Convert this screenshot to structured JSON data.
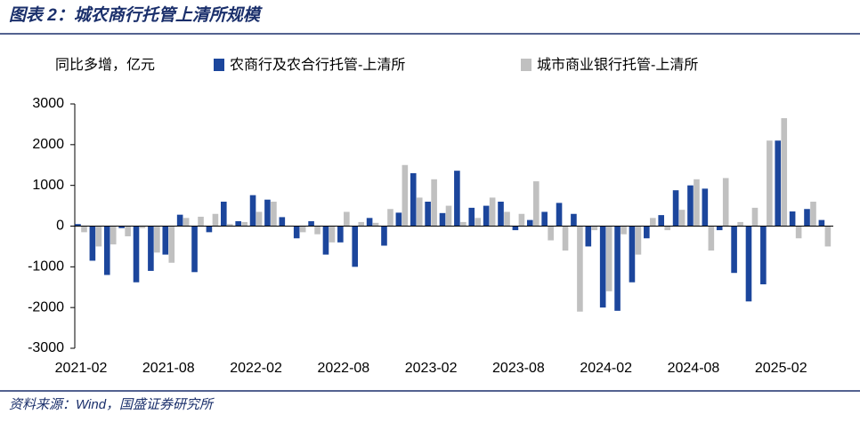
{
  "chart_data": {
    "type": "bar",
    "title": "图表 2：城农商行托管上清所规模",
    "y_label": "同比多增，亿元",
    "source": "资料来源：Wind，国盛证券研究所",
    "categories": [
      "2021-02",
      null,
      null,
      null,
      null,
      null,
      "2021-08",
      null,
      null,
      null,
      null,
      null,
      "2022-02",
      null,
      null,
      null,
      null,
      null,
      "2022-08",
      null,
      null,
      null,
      null,
      null,
      "2023-02",
      null,
      null,
      null,
      null,
      null,
      "2023-08",
      null,
      null,
      null,
      null,
      null,
      "2024-02",
      null,
      null,
      null,
      null,
      null,
      "2024-08",
      null,
      null,
      null,
      null,
      null,
      "2025-02",
      null,
      null,
      null
    ],
    "series": [
      {
        "name": "农商行及农合行托管-上清所",
        "color": "#1c469c",
        "values": [
          50,
          -850,
          -1200,
          -50,
          -1380,
          -1100,
          -700,
          280,
          -1130,
          -150,
          600,
          120,
          760,
          650,
          220,
          -300,
          120,
          -700,
          -400,
          -1000,
          200,
          -480,
          330,
          1300,
          600,
          320,
          1360,
          450,
          500,
          600,
          -100,
          150,
          350,
          570,
          300,
          -500,
          -2000,
          -2080,
          -1380,
          -300,
          270,
          880,
          1000,
          920,
          -100,
          -1150,
          -1850,
          -1430,
          2100,
          360,
          420,
          150
        ]
      },
      {
        "name": "城市商业银行托管-上清所",
        "color": "#c0c0c0",
        "values": [
          -150,
          -500,
          -450,
          -250,
          -50,
          -650,
          -900,
          200,
          230,
          300,
          50,
          100,
          350,
          600,
          0,
          -150,
          -200,
          -400,
          350,
          100,
          80,
          420,
          1500,
          700,
          1150,
          500,
          100,
          200,
          700,
          350,
          300,
          1100,
          -350,
          -600,
          -2100,
          -100,
          -1600,
          -200,
          -700,
          200,
          -100,
          400,
          1150,
          -600,
          1180,
          100,
          450,
          2100,
          2650,
          -300,
          600,
          -500
        ]
      }
    ],
    "ylim": [
      -3000,
      3000
    ],
    "yticks": [
      -3000,
      -2000,
      -1000,
      0,
      1000,
      2000,
      3000
    ]
  }
}
